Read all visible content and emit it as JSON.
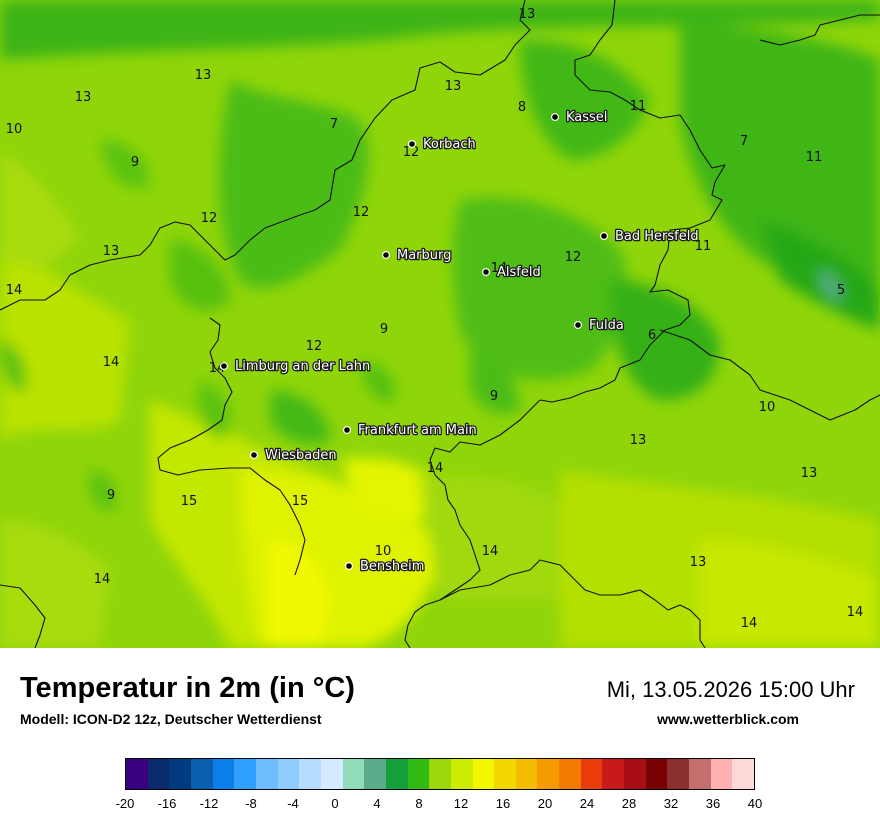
{
  "map": {
    "cities": [
      {
        "name": "Kassel"
      },
      {
        "name": "Korbach"
      },
      {
        "name": "Bad Hersfeld"
      },
      {
        "name": "Marburg"
      },
      {
        "name": "Alsfeld"
      },
      {
        "name": "Fulda"
      },
      {
        "name": "Limburg an der Lahn"
      },
      {
        "name": "Frankfurt am Main"
      },
      {
        "name": "Wiesbaden"
      },
      {
        "name": "Bensheim"
      }
    ],
    "temperature_labels": [
      "13",
      "13",
      "13",
      "10",
      "9",
      "7",
      "13",
      "8",
      "11",
      "12",
      "7",
      "11",
      "12",
      "12",
      "13",
      "12",
      "11",
      "14",
      "14",
      "5",
      "9",
      "12",
      "6",
      "14",
      "14",
      "9",
      "10",
      "13",
      "14",
      "9",
      "15",
      "15",
      "13",
      "10",
      "14",
      "14",
      "13",
      "14",
      "14"
    ]
  },
  "footer": {
    "title": "Temperatur in 2m (in °C)",
    "subtitle": "Modell: ICON-D2 12z, Deutscher Wetterdienst",
    "datetime": "Mi, 13.05.2026 15:00 Uhr",
    "website": "www.wetterblick.com"
  },
  "colorbar": {
    "colors": [
      "#3b0080",
      "#0a2a6e",
      "#003b80",
      "#0b5fb0",
      "#0a7fe8",
      "#2fa0ff",
      "#6fbcff",
      "#90cdff",
      "#b6dcff",
      "#d6ebff",
      "#90dcb8",
      "#5aab8a",
      "#13a03a",
      "#2fbb14",
      "#9ad80a",
      "#cdec05",
      "#f3f800",
      "#f3d800",
      "#f3bc00",
      "#f39b00",
      "#f37a00",
      "#ea3c0a",
      "#c81a1a",
      "#a80f14",
      "#780000",
      "#8a2e2e",
      "#c46e6e",
      "#ffb0b0",
      "#ffd8d8"
    ],
    "tick_labels": [
      "-20",
      "-16",
      "-12",
      "-8",
      "-4",
      "0",
      "4",
      "8",
      "12",
      "16",
      "20",
      "24",
      "28",
      "32",
      "36",
      "40"
    ]
  }
}
